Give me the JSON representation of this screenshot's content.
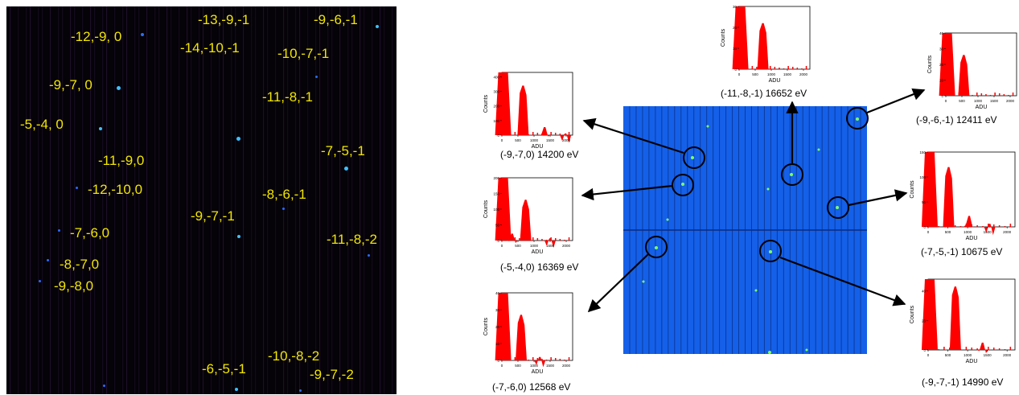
{
  "colors": {
    "label": "#f2e600",
    "spot": "#3fc0ff",
    "detector": "#1560e8",
    "histogram": "#ff0000"
  },
  "left_labels": [
    "-12,-9, 0",
    "-13,-9,-1",
    "-9,-6,-1",
    "-14,-10,-1",
    "-10,-7,-1",
    "-9,-7, 0",
    "-11,-8,-1",
    "-5,-4, 0",
    "-7,-5,-1",
    "-11,-9,0",
    "-12,-10,0",
    "-8,-6,-1",
    "-9,-7,-1",
    "-11,-8,-2",
    "-7,-6,0",
    "-8,-7,0",
    "-9,-8,0",
    "-10,-8,-2",
    "-6,-5,-1",
    "-9,-7,-2"
  ],
  "histograms": [
    {
      "caption": "(-11,-8,-1) 16652 eV",
      "xlabel": "ADU",
      "ylabel": "Counts",
      "xticks": [
        "0",
        "500",
        "1000",
        "1500",
        "2000"
      ],
      "yticks": [
        "0",
        "10",
        "20",
        "30"
      ],
      "ymax": 30,
      "peaks": [
        {
          "adu": 40,
          "counts": 30,
          "clipped": true
        },
        {
          "adu": 740,
          "counts": 22
        }
      ]
    },
    {
      "caption": "(-9,-6,-1) 12411 eV",
      "xlabel": "ADU",
      "ylabel": "Counts",
      "xticks": [
        "0",
        "500",
        "1000",
        "1500",
        "2000"
      ],
      "yticks": [
        "0",
        "10",
        "20",
        "30",
        "40"
      ],
      "ymax": 40,
      "peaks": [
        {
          "adu": 40,
          "counts": 40,
          "clipped": true
        },
        {
          "adu": 560,
          "counts": 26
        }
      ]
    },
    {
      "caption": "(-9,-7,0) 14200 eV",
      "xlabel": "ADU",
      "ylabel": "Counts",
      "xticks": [
        "0",
        "500",
        "1000",
        "1500",
        "2000"
      ],
      "yticks": [
        "0",
        "100",
        "200",
        "300",
        "400"
      ],
      "ymax": 430,
      "peaks": [
        {
          "adu": 40,
          "counts": 430,
          "clipped": true
        },
        {
          "adu": 660,
          "counts": 340
        },
        {
          "adu": 1330,
          "counts": 55
        },
        {
          "adu": 1980,
          "counts": 12
        }
      ]
    },
    {
      "caption": "(-5,-4,0) 16369 eV",
      "xlabel": "ADU",
      "ylabel": "Counts",
      "xticks": [
        "0",
        "500",
        "1000",
        "1500",
        "2000"
      ],
      "yticks": [
        "0",
        "50",
        "100",
        "150",
        "200"
      ],
      "ymax": 200,
      "peaks": [
        {
          "adu": 40,
          "counts": 200,
          "clipped": true
        },
        {
          "adu": 320,
          "counts": 22
        },
        {
          "adu": 740,
          "counts": 130
        },
        {
          "adu": 1500,
          "counts": 7
        }
      ]
    },
    {
      "caption": "(-7,-5,-1) 10675 eV",
      "xlabel": "ADU",
      "ylabel": "Counts",
      "xticks": [
        "0",
        "500",
        "1000",
        "1500",
        "2000"
      ],
      "yticks": [
        "0",
        "50",
        "100",
        "150"
      ],
      "ymax": 150,
      "peaks": [
        {
          "adu": 40,
          "counts": 150,
          "clipped": true
        },
        {
          "adu": 520,
          "counts": 120
        },
        {
          "adu": 1040,
          "counts": 22
        },
        {
          "adu": 1560,
          "counts": 6
        }
      ]
    },
    {
      "caption": "(-7,-6,0) 12568 eV",
      "xlabel": "ADU",
      "ylabel": "Counts",
      "xticks": [
        "0",
        "500",
        "1000",
        "1500",
        "2000"
      ],
      "yticks": [
        "0",
        "10",
        "20",
        "30",
        "40"
      ],
      "ymax": 40,
      "peaks": [
        {
          "adu": 40,
          "counts": 40,
          "clipped": true
        },
        {
          "adu": 600,
          "counts": 27
        },
        {
          "adu": 1180,
          "counts": 2
        }
      ]
    },
    {
      "caption": "(-9,-7,-1) 14990 eV",
      "xlabel": "ADU",
      "ylabel": "Counts",
      "xticks": [
        "0",
        "500",
        "1000",
        "1500",
        "2000"
      ],
      "yticks": [
        "0",
        "20",
        "40"
      ],
      "ymax": 48,
      "peaks": [
        {
          "adu": 40,
          "counts": 48,
          "clipped": true
        },
        {
          "adu": 690,
          "counts": 43
        },
        {
          "adu": 1380,
          "counts": 5
        }
      ]
    }
  ]
}
